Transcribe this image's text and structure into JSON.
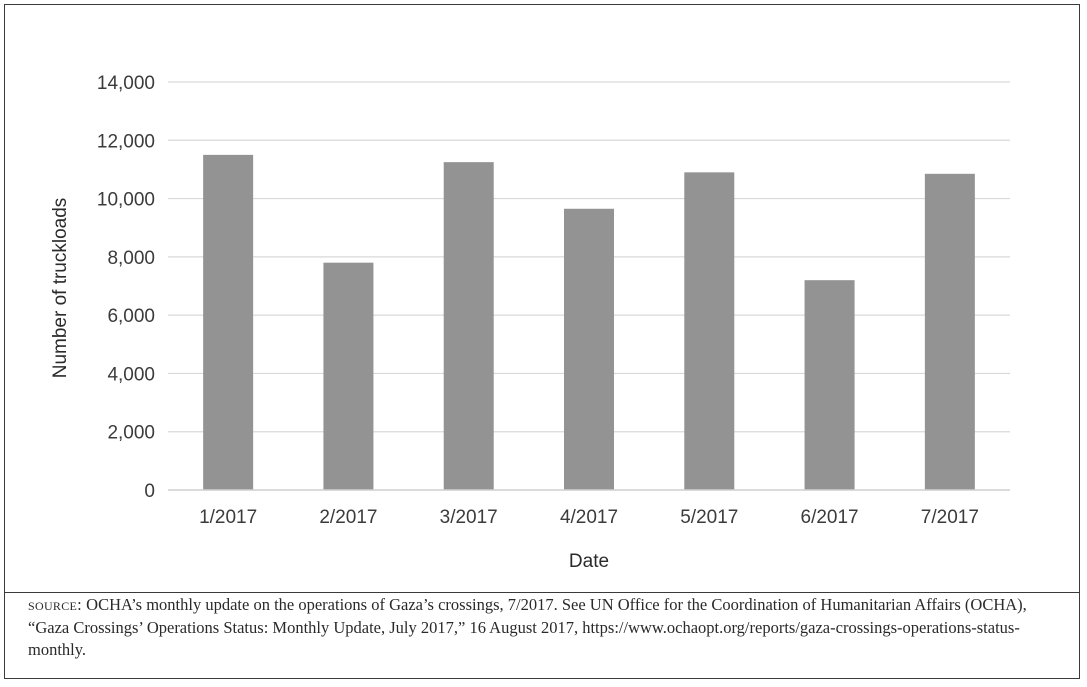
{
  "chart_data": {
    "type": "bar",
    "categories": [
      "1/2017",
      "2/2017",
      "3/2017",
      "4/2017",
      "5/2017",
      "6/2017",
      "7/2017"
    ],
    "values": [
      11500,
      7800,
      11250,
      9650,
      10900,
      7200,
      10850
    ],
    "xlabel": "Date",
    "ylabel": "Number of truckloads",
    "ylim": [
      0,
      14000
    ],
    "yticks": [
      0,
      2000,
      4000,
      6000,
      8000,
      10000,
      12000,
      14000
    ],
    "ytick_labels": [
      "0",
      "2,000",
      "4,000",
      "6,000",
      "8,000",
      "10,000",
      "12,000",
      "14,000"
    ],
    "grid": true,
    "bar_color": "#939393",
    "grid_color": "#d9d9d9"
  },
  "source": {
    "label": "SOURCE:",
    "text": " OCHA’s monthly update on the operations of Gaza’s crossings, 7/2017. See UN Office for the Coordination of Humanitarian Affairs (OCHA), “Gaza Crossings’ Operations Status: Monthly Update, July 2017,” 16 August 2017, https://www.ochaopt.org/reports/gaza-crossings-operations-status-monthly."
  }
}
